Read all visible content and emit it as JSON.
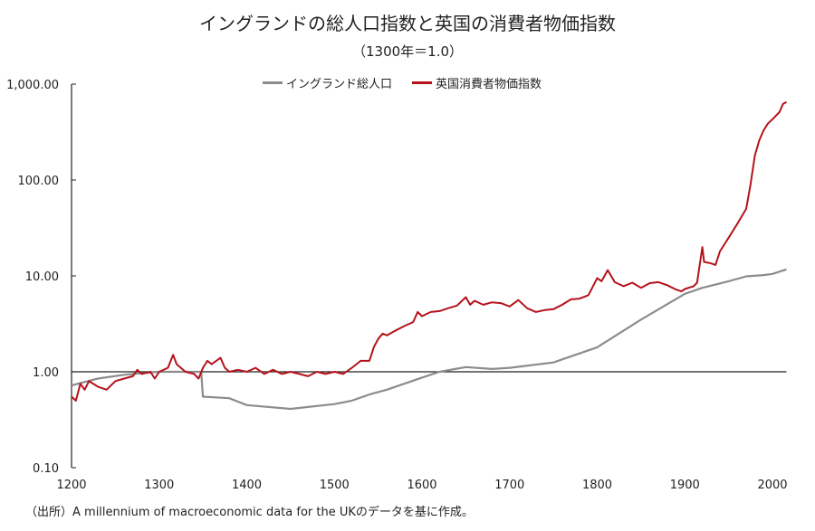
{
  "chart_data": {
    "type": "line",
    "title": "イングランドの総人口指数と英国の消費者物価指数",
    "subtitle": "（1300年＝1.0）",
    "xlabel": "",
    "ylabel": "",
    "yscale": "log",
    "xlim": [
      1200,
      2016
    ],
    "ylim": [
      0.1,
      1000
    ],
    "x_ticks": [
      "1200",
      "1300",
      "1400",
      "1500",
      "1600",
      "1700",
      "1800",
      "1900",
      "2000"
    ],
    "y_ticks": [
      "0.10",
      "1.00",
      "10.00",
      "100.00",
      "1,000.00"
    ],
    "legend_position": "top-center",
    "reference_line": 1.0,
    "series": [
      {
        "name": "イングランド総人口",
        "color": "#8c8c8c",
        "points": [
          [
            1200,
            0.72
          ],
          [
            1230,
            0.85
          ],
          [
            1260,
            0.93
          ],
          [
            1300,
            1.0
          ],
          [
            1348,
            1.0
          ],
          [
            1350,
            0.55
          ],
          [
            1380,
            0.53
          ],
          [
            1400,
            0.45
          ],
          [
            1450,
            0.41
          ],
          [
            1500,
            0.46
          ],
          [
            1520,
            0.5
          ],
          [
            1540,
            0.58
          ],
          [
            1560,
            0.65
          ],
          [
            1570,
            0.7
          ],
          [
            1600,
            0.87
          ],
          [
            1620,
            1.0
          ],
          [
            1650,
            1.12
          ],
          [
            1680,
            1.07
          ],
          [
            1700,
            1.1
          ],
          [
            1750,
            1.25
          ],
          [
            1800,
            1.8
          ],
          [
            1850,
            3.5
          ],
          [
            1900,
            6.5
          ],
          [
            1920,
            7.5
          ],
          [
            1950,
            8.8
          ],
          [
            1970,
            9.9
          ],
          [
            1990,
            10.2
          ],
          [
            2000,
            10.5
          ],
          [
            2016,
            11.7
          ]
        ]
      },
      {
        "name": "英国消費者物価指数",
        "color": "#b5121b",
        "points": [
          [
            1200,
            0.55
          ],
          [
            1205,
            0.5
          ],
          [
            1210,
            0.75
          ],
          [
            1215,
            0.65
          ],
          [
            1220,
            0.8
          ],
          [
            1230,
            0.7
          ],
          [
            1240,
            0.65
          ],
          [
            1250,
            0.8
          ],
          [
            1260,
            0.85
          ],
          [
            1270,
            0.9
          ],
          [
            1275,
            1.05
          ],
          [
            1280,
            0.95
          ],
          [
            1290,
            1.0
          ],
          [
            1295,
            0.85
          ],
          [
            1300,
            1.0
          ],
          [
            1310,
            1.1
          ],
          [
            1316,
            1.5
          ],
          [
            1320,
            1.2
          ],
          [
            1330,
            1.0
          ],
          [
            1340,
            0.95
          ],
          [
            1345,
            0.85
          ],
          [
            1350,
            1.1
          ],
          [
            1355,
            1.3
          ],
          [
            1360,
            1.2
          ],
          [
            1370,
            1.4
          ],
          [
            1375,
            1.1
          ],
          [
            1380,
            1.0
          ],
          [
            1390,
            1.05
          ],
          [
            1400,
            1.0
          ],
          [
            1410,
            1.1
          ],
          [
            1420,
            0.95
          ],
          [
            1430,
            1.05
          ],
          [
            1440,
            0.95
          ],
          [
            1450,
            1.0
          ],
          [
            1460,
            0.95
          ],
          [
            1470,
            0.9
          ],
          [
            1480,
            1.0
          ],
          [
            1490,
            0.95
          ],
          [
            1500,
            1.0
          ],
          [
            1510,
            0.95
          ],
          [
            1520,
            1.1
          ],
          [
            1530,
            1.3
          ],
          [
            1540,
            1.3
          ],
          [
            1545,
            1.8
          ],
          [
            1550,
            2.2
          ],
          [
            1555,
            2.5
          ],
          [
            1560,
            2.4
          ],
          [
            1570,
            2.7
          ],
          [
            1580,
            3.0
          ],
          [
            1590,
            3.3
          ],
          [
            1595,
            4.2
          ],
          [
            1600,
            3.8
          ],
          [
            1610,
            4.2
          ],
          [
            1620,
            4.3
          ],
          [
            1630,
            4.6
          ],
          [
            1640,
            4.9
          ],
          [
            1650,
            6.0
          ],
          [
            1655,
            5.0
          ],
          [
            1660,
            5.5
          ],
          [
            1670,
            5.0
          ],
          [
            1680,
            5.3
          ],
          [
            1690,
            5.2
          ],
          [
            1700,
            4.8
          ],
          [
            1710,
            5.6
          ],
          [
            1720,
            4.6
          ],
          [
            1730,
            4.2
          ],
          [
            1740,
            4.4
          ],
          [
            1750,
            4.5
          ],
          [
            1760,
            5.0
          ],
          [
            1770,
            5.7
          ],
          [
            1780,
            5.8
          ],
          [
            1790,
            6.3
          ],
          [
            1800,
            9.5
          ],
          [
            1805,
            8.8
          ],
          [
            1812,
            11.5
          ],
          [
            1820,
            8.6
          ],
          [
            1830,
            7.8
          ],
          [
            1840,
            8.5
          ],
          [
            1850,
            7.5
          ],
          [
            1860,
            8.4
          ],
          [
            1870,
            8.6
          ],
          [
            1880,
            8.0
          ],
          [
            1890,
            7.2
          ],
          [
            1896,
            6.9
          ],
          [
            1900,
            7.3
          ],
          [
            1910,
            7.8
          ],
          [
            1914,
            8.5
          ],
          [
            1920,
            20
          ],
          [
            1922,
            14
          ],
          [
            1930,
            13.5
          ],
          [
            1935,
            13
          ],
          [
            1940,
            18
          ],
          [
            1950,
            25
          ],
          [
            1960,
            35
          ],
          [
            1970,
            50
          ],
          [
            1975,
            90
          ],
          [
            1980,
            180
          ],
          [
            1985,
            260
          ],
          [
            1990,
            330
          ],
          [
            1995,
            390
          ],
          [
            2000,
            430
          ],
          [
            2008,
            510
          ],
          [
            2012,
            620
          ],
          [
            2016,
            650
          ]
        ]
      }
    ]
  },
  "source": "（出所）A millennium of macroeconomic data for the UKのデータを基に作成。"
}
